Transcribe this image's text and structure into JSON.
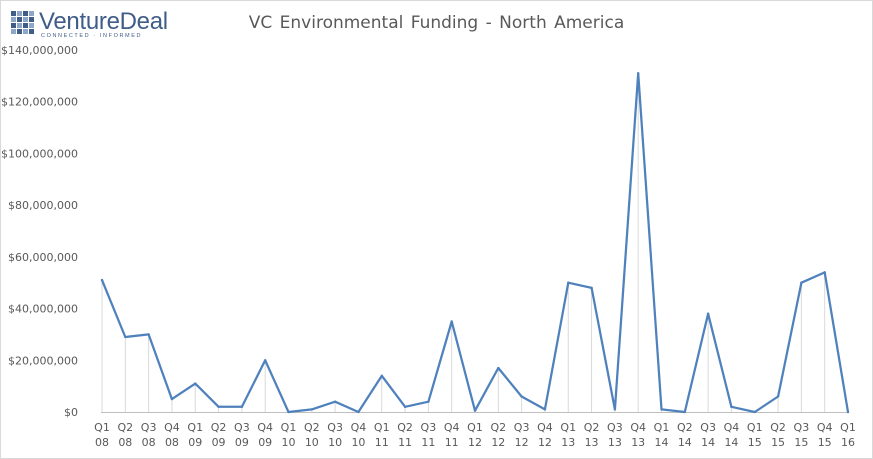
{
  "brand": {
    "name": "VentureDeal",
    "tagline": "CONNECTED · INFORMED",
    "icon": "grid-logo-icon",
    "color": "#3f5d87"
  },
  "chart_data": {
    "type": "line",
    "title": "VC Environmental  Funding - North America",
    "xlabel": "",
    "ylabel": "",
    "ylim": [
      0,
      140000000
    ],
    "yticks": [
      "$0",
      "$20,000,000",
      "$40,000,000",
      "$60,000,000",
      "$80,000,000",
      "$100,000,000",
      "$120,000,000",
      "$140,000,000"
    ],
    "grid": false,
    "drop_lines": true,
    "line_color": "#4f81bd",
    "categories": [
      [
        "Q1",
        "08"
      ],
      [
        "Q2",
        "08"
      ],
      [
        "Q3",
        "08"
      ],
      [
        "Q4",
        "08"
      ],
      [
        "Q1",
        "09"
      ],
      [
        "Q2",
        "09"
      ],
      [
        "Q3",
        "09"
      ],
      [
        "Q4",
        "09"
      ],
      [
        "Q1",
        "10"
      ],
      [
        "Q2",
        "10"
      ],
      [
        "Q3",
        "10"
      ],
      [
        "Q4",
        "10"
      ],
      [
        "Q1",
        "11"
      ],
      [
        "Q2",
        "11"
      ],
      [
        "Q3",
        "11"
      ],
      [
        "Q4",
        "11"
      ],
      [
        "Q1",
        "12"
      ],
      [
        "Q2",
        "12"
      ],
      [
        "Q3",
        "12"
      ],
      [
        "Q4",
        "12"
      ],
      [
        "Q1",
        "13"
      ],
      [
        "Q2",
        "13"
      ],
      [
        "Q3",
        "13"
      ],
      [
        "Q4",
        "13"
      ],
      [
        "Q1",
        "14"
      ],
      [
        "Q2",
        "14"
      ],
      [
        "Q3",
        "14"
      ],
      [
        "Q4",
        "14"
      ],
      [
        "Q1",
        "15"
      ],
      [
        "Q2",
        "15"
      ],
      [
        "Q3",
        "15"
      ],
      [
        "Q4",
        "15"
      ],
      [
        "Q1",
        "16"
      ]
    ],
    "values": [
      51000000,
      29000000,
      30000000,
      5000000,
      11000000,
      2000000,
      2000000,
      20000000,
      0,
      1000000,
      4000000,
      0,
      14000000,
      2000000,
      4000000,
      35000000,
      500000,
      17000000,
      6000000,
      1000000,
      50000000,
      48000000,
      1000000,
      131000000,
      1000000,
      0,
      38000000,
      2000000,
      0,
      6000000,
      50000000,
      54000000,
      0
    ]
  }
}
